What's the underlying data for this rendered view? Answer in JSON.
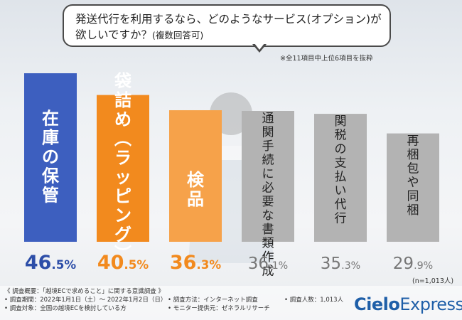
{
  "question": {
    "line1": "発送代行を利用するなら、どのようなサービス(オプション)が",
    "line2": "欲しいですか？",
    "line2_small": "(複数回答可)"
  },
  "note": "※全11項目中上位6項目を抜粋",
  "sample_note": "(n=1,013人)",
  "chart_data": {
    "type": "bar",
    "title": "発送代行を利用するなら、どのようなサービス(オプション)が欲しいですか？(複数回答可)",
    "categories": [
      "在庫の保管",
      "袋詰め(ラッピング)",
      "検品",
      "通関手続に必要な書類作成",
      "関税の支払い代行",
      "再梱包や同梱"
    ],
    "values": [
      46.5,
      40.5,
      36.3,
      36.1,
      35.3,
      29.9
    ],
    "labels": [
      {
        "int": "46",
        "dec": ".5",
        "unit": "%"
      },
      {
        "int": "40",
        "dec": ".5",
        "unit": "%"
      },
      {
        "int": "36",
        "dec": ".3",
        "unit": "%"
      },
      {
        "int": "36",
        "dec": ".1",
        "unit": "%"
      },
      {
        "int": "35",
        "dec": ".3",
        "unit": "%"
      },
      {
        "int": "29",
        "dec": ".9",
        "unit": "%"
      }
    ],
    "colors": [
      "#3d5fbf",
      "#f28a1e",
      "#f6a24a",
      "#b3b3b3",
      "#b3b3b3",
      "#b3b3b3"
    ],
    "label_colors": [
      "#2d4ea8",
      "#f28a1e",
      "#f28a1e",
      "#777777",
      "#777777",
      "#777777"
    ],
    "ylim": [
      0,
      50
    ]
  },
  "footer": {
    "title": "《 調査概要：「越境ECで求めること」に関する意識調査 》",
    "period": "• 調査期間：2022年1月1日（土）～ 2022年1月2日（日）",
    "target": "• 調査対象：全国の越境ECを検討している方",
    "method": "• 調査方法：インターネット調査",
    "provider": "• モニター提供元：ゼネラルリサーチ",
    "count": "• 調査人数：1,013人"
  },
  "logo": {
    "part1": "Cielo",
    "part2": "Express"
  }
}
